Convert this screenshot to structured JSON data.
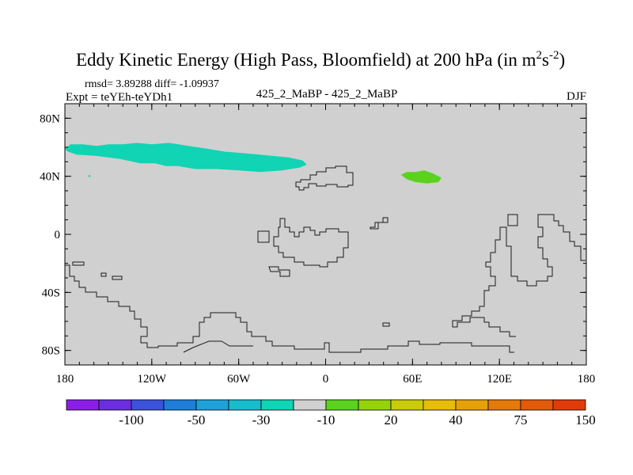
{
  "chart_data": {
    "type": "heatmap",
    "title": {
      "main": "Eddy Kinetic Energy (High Pass, Bloomfield) at 200 hPa (in m",
      "unit_sup1": "2",
      "unit_mid": "s",
      "unit_sup2": "-2",
      "close": ")"
    },
    "stats": "rmsd= 3.89288 diff= -1.09937",
    "expt": "Expt = teYEh-teYDh1",
    "center_label": "425_2_MaBP - 425_2_MaBP",
    "season": "DJF",
    "x_axis": {
      "range": [
        -180,
        180
      ],
      "ticks": [
        {
          "value": -180,
          "label": "180"
        },
        {
          "value": -120,
          "label": "120W"
        },
        {
          "value": -60,
          "label": "60W"
        },
        {
          "value": 0,
          "label": "0"
        },
        {
          "value": 60,
          "label": "60E"
        },
        {
          "value": 120,
          "label": "120E"
        },
        {
          "value": 180,
          "label": "180"
        }
      ]
    },
    "y_axis": {
      "range": [
        -90,
        90
      ],
      "ticks": [
        {
          "value": 80,
          "label": "80N"
        },
        {
          "value": 40,
          "label": "40N"
        },
        {
          "value": 0,
          "label": "0"
        },
        {
          "value": -40,
          "label": "40S"
        },
        {
          "value": -80,
          "label": "80S"
        }
      ]
    },
    "background_color": "#d0d0d0",
    "colorbar": {
      "colors": [
        "#8a1ee6",
        "#6a2ee0",
        "#3c52dc",
        "#1e7ed8",
        "#1ea0d8",
        "#18bccc",
        "#10d4b4",
        "#d0d0d0",
        "#5ad21e",
        "#96d20a",
        "#c8cc0a",
        "#e6be0a",
        "#e6a00a",
        "#e47a0a",
        "#e25a0a",
        "#e03c0a"
      ],
      "labels": [
        {
          "after_box": 2,
          "text": "-100"
        },
        {
          "after_box": 4,
          "text": "-50"
        },
        {
          "after_box": 6,
          "text": "-30"
        },
        {
          "after_box": 8,
          "text": "-10"
        },
        {
          "after_box": 10,
          "text": "20"
        },
        {
          "after_box": 12,
          "text": "40"
        },
        {
          "after_box": 14,
          "text": "75"
        },
        {
          "after_box": 16,
          "text": "150"
        }
      ]
    },
    "regions": [
      {
        "name": "north-atlantic-negative",
        "color": "#10d4b4",
        "points": [
          [
            -180,
            59
          ],
          [
            -176,
            62
          ],
          [
            -168,
            62
          ],
          [
            -158,
            61
          ],
          [
            -150,
            62
          ],
          [
            -140,
            62
          ],
          [
            -130,
            63
          ],
          [
            -120,
            62
          ],
          [
            -108,
            63
          ],
          [
            -95,
            61
          ],
          [
            -82,
            59
          ],
          [
            -70,
            57
          ],
          [
            -58,
            56
          ],
          [
            -46,
            55
          ],
          [
            -36,
            54
          ],
          [
            -26,
            53
          ],
          [
            -16,
            51
          ],
          [
            -13,
            48
          ],
          [
            -18,
            46
          ],
          [
            -30,
            44
          ],
          [
            -45,
            43
          ],
          [
            -60,
            44
          ],
          [
            -75,
            45
          ],
          [
            -90,
            45
          ],
          [
            -102,
            47
          ],
          [
            -110,
            47
          ],
          [
            -118,
            49
          ],
          [
            -128,
            49
          ],
          [
            -142,
            52
          ],
          [
            -158,
            54
          ],
          [
            -172,
            55
          ],
          [
            -178,
            57
          ]
        ]
      },
      {
        "name": "small-negative-spot",
        "color": "#10d4b4",
        "points": [
          [
            -164,
            40
          ],
          [
            -163,
            41
          ],
          [
            -162,
            40
          ],
          [
            -163,
            39.5
          ]
        ]
      },
      {
        "name": "central-asia-positive",
        "color": "#5ad21e",
        "points": [
          [
            52,
            41
          ],
          [
            56,
            43
          ],
          [
            62,
            43
          ],
          [
            68,
            44
          ],
          [
            74,
            42
          ],
          [
            80,
            39
          ],
          [
            78,
            36
          ],
          [
            70,
            35
          ],
          [
            62,
            36
          ],
          [
            56,
            38
          ]
        ]
      }
    ]
  }
}
